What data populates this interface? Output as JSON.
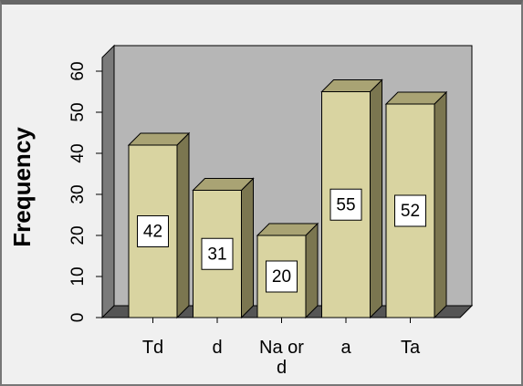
{
  "chart_data": {
    "type": "bar3d",
    "y_label": "Frequency",
    "categories": [
      "Td",
      "d",
      "Na or d",
      "a",
      "Ta"
    ],
    "values": [
      42,
      31,
      20,
      55,
      52
    ],
    "color": "#d9d4a1",
    "ylim": [
      0,
      60
    ],
    "yticks": [
      0,
      10,
      20,
      30,
      40,
      50,
      60
    ]
  }
}
